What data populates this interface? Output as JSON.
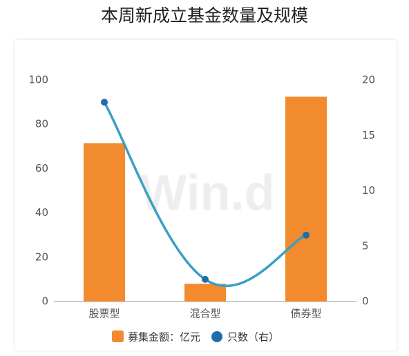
{
  "chart_data": {
    "type": "bar",
    "title": "本周新成立基金数量及规模",
    "watermark": "Win.d",
    "categories": [
      "股票型",
      "混合型",
      "债券型"
    ],
    "series": [
      {
        "name": "募集金额：亿元",
        "type": "bar",
        "color": "#f28a2e",
        "values": [
          71.5,
          8,
          92.5
        ]
      },
      {
        "name": "只数（右）",
        "type": "line",
        "axis": "y2",
        "color": "#3a9fc5",
        "marker_color": "#1f6eaa",
        "values": [
          18,
          2,
          6
        ]
      }
    ],
    "ylim": [
      0,
      100
    ],
    "yticks": [
      0,
      20,
      40,
      60,
      80,
      100
    ],
    "y2lim": [
      0,
      20
    ],
    "y2ticks": [
      0,
      5,
      10,
      15,
      20
    ]
  }
}
